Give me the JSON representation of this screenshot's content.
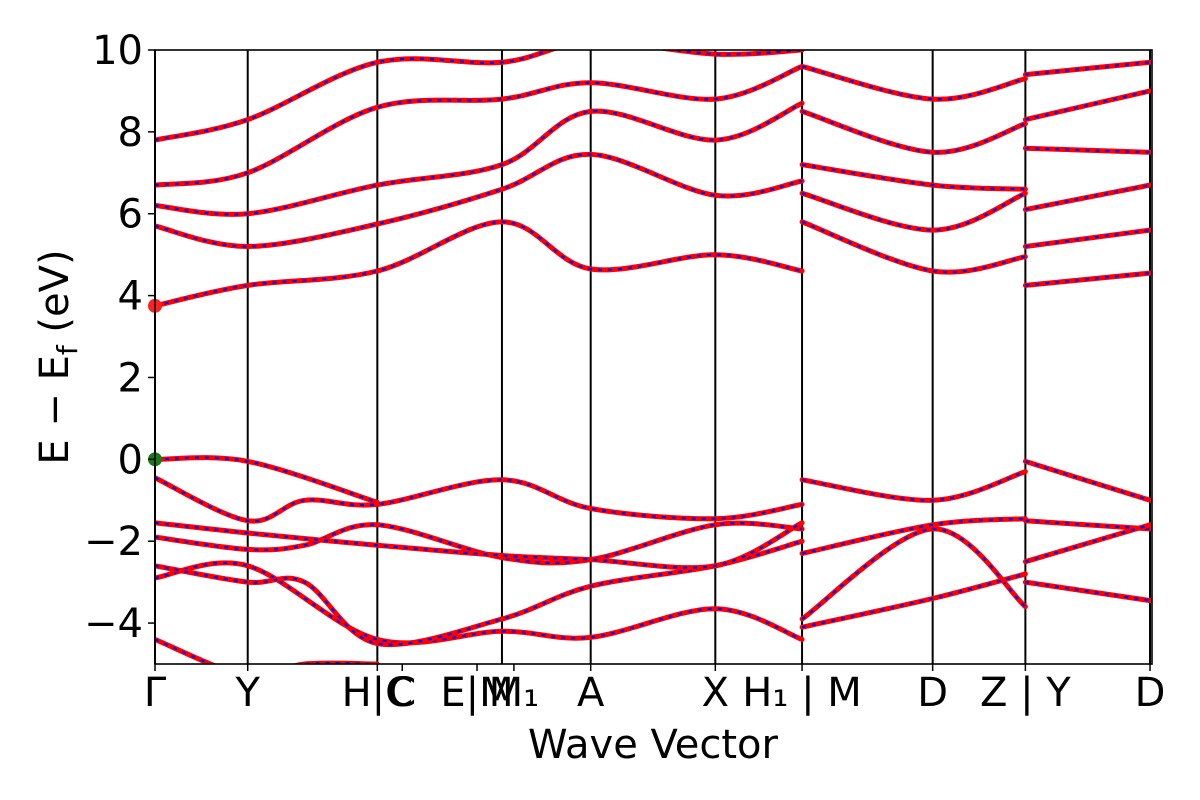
{
  "chart_data": {
    "type": "line",
    "title": "",
    "xlabel": "Wave Vector",
    "ylabel": "E − E_f (eV)",
    "ylabel_parts": {
      "main": "E  −  E",
      "sub": "f",
      "unit": " (eV)"
    },
    "ylim": [
      -5,
      10
    ],
    "yticks": [
      -4,
      -2,
      0,
      2,
      4,
      6,
      8,
      10
    ],
    "ytick_labels": [
      "−4",
      "−2",
      "0",
      "2",
      "4",
      "6",
      "8",
      "10"
    ],
    "kpoints": [
      {
        "label": "Γ",
        "pos": 0.0
      },
      {
        "label": "Y",
        "pos": 0.093
      },
      {
        "label": "H|C",
        "pos": 0.223
      },
      {
        "label": "C",
        "pos": 0.248
      },
      {
        "label": "E|M",
        "pos": 0.323
      },
      {
        "label": "M₁",
        "pos": 0.36
      },
      {
        "label": "A",
        "pos": 0.437
      },
      {
        "label": "X",
        "pos": 0.562
      },
      {
        "label": "H₁ | M",
        "pos": 0.649
      },
      {
        "label": "D",
        "pos": 0.78
      },
      {
        "label": "Z | Y",
        "pos": 0.873
      },
      {
        "label": "D",
        "pos": 0.998
      }
    ],
    "vlines": [
      0.0,
      0.093,
      0.223,
      0.348,
      0.437,
      0.562,
      0.649,
      0.78,
      0.873,
      0.998
    ],
    "markers": [
      {
        "name": "VBM",
        "x": 0.0,
        "y": 0.0,
        "color": "#1a7a1a"
      },
      {
        "name": "CBM",
        "x": 0.0,
        "y": 3.75,
        "color": "#ff2020"
      }
    ],
    "series_styles": {
      "dft": "#ff0000",
      "model": "#0000ff"
    },
    "bands": [
      {
        "x": [
          0.0,
          0.093,
          0.15,
          0.223
        ],
        "y": [
          -4.4,
          -5.3,
          -5.0,
          -5.0
        ]
      },
      {
        "x": [
          0.0,
          0.093,
          0.223,
          0.348,
          0.437,
          0.562,
          0.649
        ],
        "y": [
          -2.9,
          -2.6,
          -4.4,
          -4.2,
          -4.35,
          -3.65,
          -4.4
        ]
      },
      {
        "x": [
          0.0,
          0.093,
          0.15,
          0.223,
          0.348,
          0.437,
          0.562,
          0.649
        ],
        "y": [
          -2.6,
          -3.0,
          -3.0,
          -4.5,
          -3.9,
          -3.1,
          -2.6,
          -2.0
        ]
      },
      {
        "x": [
          0.0,
          0.093,
          0.15,
          0.223,
          0.348,
          0.437,
          0.562,
          0.649
        ],
        "y": [
          -1.9,
          -2.2,
          -2.1,
          -1.6,
          -2.4,
          -2.45,
          -1.6,
          -1.7
        ]
      },
      {
        "x": [
          0.0,
          0.093,
          0.223,
          0.348,
          0.437,
          0.562,
          0.649
        ],
        "y": [
          -1.55,
          -1.8,
          -2.1,
          -2.35,
          -2.45,
          -2.6,
          -1.55
        ]
      },
      {
        "x": [
          0.0,
          0.093,
          0.15,
          0.223,
          0.348,
          0.437,
          0.562,
          0.649
        ],
        "y": [
          -0.45,
          -1.5,
          -1.0,
          -1.1,
          -0.5,
          -1.2,
          -1.45,
          -1.1
        ]
      },
      {
        "x": [
          0.0,
          0.093,
          0.223
        ],
        "y": [
          0.0,
          -0.05,
          -1.05
        ]
      },
      {
        "x": [
          0.0,
          0.093,
          0.223,
          0.348,
          0.437,
          0.562,
          0.649
        ],
        "y": [
          3.75,
          4.25,
          4.6,
          5.8,
          4.65,
          5.0,
          4.6
        ]
      },
      {
        "x": [
          0.0,
          0.093,
          0.223,
          0.348,
          0.437,
          0.562,
          0.649
        ],
        "y": [
          5.7,
          5.2,
          5.75,
          6.6,
          7.45,
          6.45,
          6.8
        ]
      },
      {
        "x": [
          0.0,
          0.093,
          0.223,
          0.348,
          0.437,
          0.562,
          0.649
        ],
        "y": [
          6.2,
          6.0,
          6.7,
          7.2,
          8.5,
          7.8,
          8.7
        ]
      },
      {
        "x": [
          0.0,
          0.093,
          0.223,
          0.348,
          0.437,
          0.562,
          0.649
        ],
        "y": [
          6.7,
          7.0,
          8.6,
          8.8,
          9.2,
          8.8,
          9.6
        ]
      },
      {
        "x": [
          0.0,
          0.093,
          0.223,
          0.348,
          0.437,
          0.562,
          0.649
        ],
        "y": [
          7.8,
          8.3,
          9.7,
          9.7,
          10.2,
          9.9,
          10.0
        ]
      },
      {
        "x": [
          0.649,
          0.78,
          0.873
        ],
        "y": [
          -0.5,
          -1.0,
          -0.3
        ]
      },
      {
        "x": [
          0.649,
          0.78,
          0.873
        ],
        "y": [
          -2.3,
          -1.6,
          -1.45
        ]
      },
      {
        "x": [
          0.649,
          0.78,
          0.873
        ],
        "y": [
          -3.9,
          -1.7,
          -3.6
        ]
      },
      {
        "x": [
          0.649,
          0.78,
          0.873
        ],
        "y": [
          -4.1,
          -3.4,
          -2.8
        ]
      },
      {
        "x": [
          0.649,
          0.78,
          0.873
        ],
        "y": [
          5.8,
          4.6,
          4.95
        ]
      },
      {
        "x": [
          0.649,
          0.78,
          0.873
        ],
        "y": [
          6.5,
          5.6,
          6.5
        ]
      },
      {
        "x": [
          0.649,
          0.78,
          0.873
        ],
        "y": [
          7.2,
          6.7,
          6.6
        ]
      },
      {
        "x": [
          0.649,
          0.78,
          0.873
        ],
        "y": [
          8.5,
          7.5,
          8.2
        ]
      },
      {
        "x": [
          0.649,
          0.78,
          0.873
        ],
        "y": [
          9.6,
          8.8,
          9.3
        ]
      },
      {
        "x": [
          0.873,
          0.998
        ],
        "y": [
          -0.05,
          -1.0
        ]
      },
      {
        "x": [
          0.873,
          0.998
        ],
        "y": [
          -1.5,
          -1.7
        ]
      },
      {
        "x": [
          0.873,
          0.998
        ],
        "y": [
          -2.5,
          -1.6
        ]
      },
      {
        "x": [
          0.873,
          0.998
        ],
        "y": [
          -3.0,
          -3.45
        ]
      },
      {
        "x": [
          0.873,
          0.998
        ],
        "y": [
          4.25,
          4.55
        ]
      },
      {
        "x": [
          0.873,
          0.998
        ],
        "y": [
          5.2,
          5.6
        ]
      },
      {
        "x": [
          0.873,
          0.998
        ],
        "y": [
          6.1,
          6.7
        ]
      },
      {
        "x": [
          0.873,
          0.998
        ],
        "y": [
          7.6,
          7.5
        ]
      },
      {
        "x": [
          0.873,
          0.998
        ],
        "y": [
          8.3,
          9.0
        ]
      },
      {
        "x": [
          0.873,
          0.998
        ],
        "y": [
          9.4,
          9.7
        ]
      }
    ]
  }
}
